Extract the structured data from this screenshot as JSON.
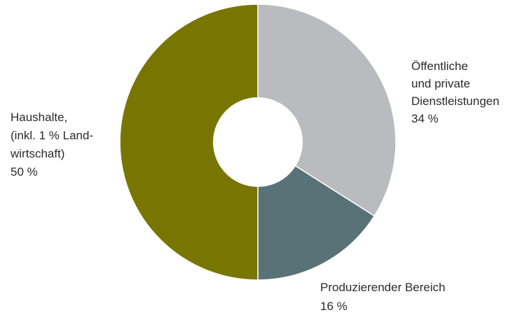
{
  "chart_data": {
    "type": "pie",
    "variant": "donut",
    "title": "",
    "slices": [
      {
        "label_lines": [
          "Öffentliche",
          "und private",
          "Dienstleistungen"
        ],
        "value_label": "34 %",
        "value": 34,
        "color": "#b9bbbe"
      },
      {
        "label_lines": [
          "Produzierender Bereich"
        ],
        "value_label": "16 %",
        "value": 16,
        "color": "#587278"
      },
      {
        "label_lines": [
          "Haushalte,",
          "(inkl. 1 % Land-",
          "wirtschaft)"
        ],
        "value_label": "50 %",
        "value": 50,
        "color": "#787600"
      }
    ],
    "start_angle_deg": 0,
    "direction": "clockwise",
    "legend": "none"
  }
}
